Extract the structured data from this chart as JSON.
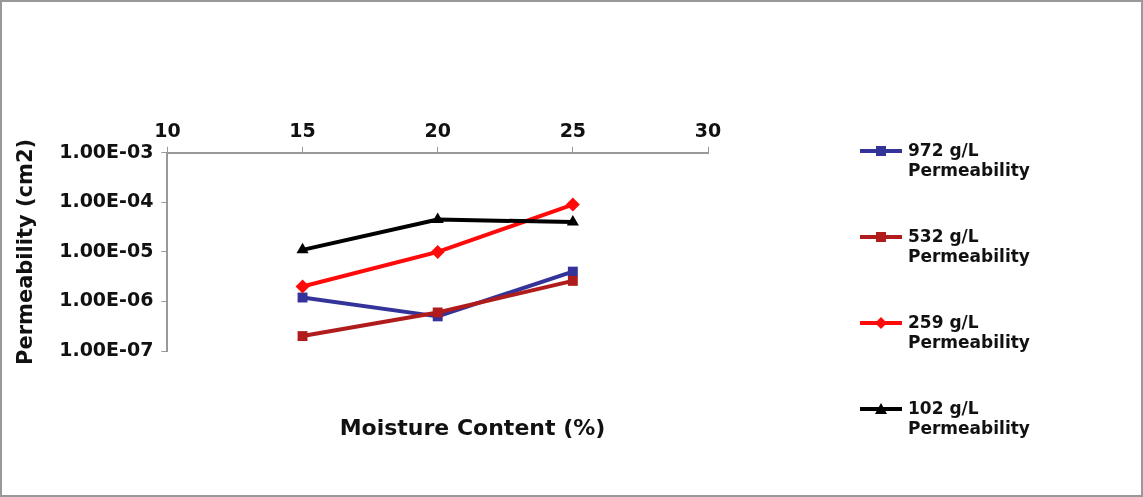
{
  "chart_data": {
    "type": "line",
    "xlabel": "Moisture Content (%)",
    "ylabel": "Permeability (cm2)",
    "log": "y",
    "xlim": [
      10,
      30
    ],
    "xticks": [
      10,
      15,
      20,
      25,
      30
    ],
    "ylim": [
      1e-07,
      0.001
    ],
    "yticks": [
      {
        "value": 1e-07,
        "label": "1.00E-07"
      },
      {
        "value": 1e-06,
        "label": "1.00E-06"
      },
      {
        "value": 1e-05,
        "label": "1.00E-05"
      },
      {
        "value": 0.0001,
        "label": "1.00E-04"
      },
      {
        "value": 0.001,
        "label": "1.00E-03"
      }
    ],
    "grid": false,
    "legend": "right",
    "x": [
      15,
      20,
      25
    ],
    "series": [
      {
        "name": "972 g/L Permeability",
        "color": "#333399",
        "marker": "square",
        "values": [
          1.2e-06,
          5e-07,
          4e-06
        ]
      },
      {
        "name": "532 g/L Permeability",
        "color": "#b01c1c",
        "marker": "square",
        "values": [
          2e-07,
          6e-07,
          2.6e-06
        ]
      },
      {
        "name": "259 g/L Permeability",
        "color": "#ff0a0a",
        "marker": "diamond",
        "values": [
          2e-06,
          1e-05,
          9e-05
        ]
      },
      {
        "name": "102 g/L Permeability",
        "color": "#000000",
        "marker": "triangle",
        "values": [
          1.1e-05,
          4.5e-05,
          4e-05
        ]
      }
    ]
  }
}
